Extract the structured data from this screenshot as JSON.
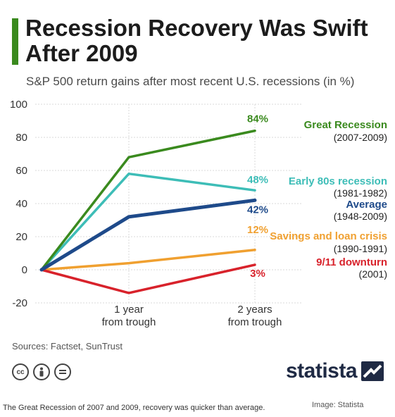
{
  "header": {
    "title": "Recession Recovery Was Swift After 2009",
    "subtitle": "S&P 500 return gains after most recent U.S. recessions (in %)",
    "accent_color": "#3a8a1e"
  },
  "chart_data": {
    "type": "line",
    "title": "Recession Recovery Was Swift After 2009",
    "subtitle": "S&P 500 return gains after most recent U.S. recessions (in %)",
    "xlabel": "",
    "ylabel": "",
    "categories": [
      "",
      "1 year\nfrom trough",
      "2 years\nfrom trough"
    ],
    "y_ticks": [
      100,
      80,
      60,
      40,
      20,
      0,
      -20
    ],
    "ylim": [
      -20,
      100
    ],
    "grid": true,
    "legend": "right",
    "series": [
      {
        "name": "Great Recession",
        "period": "(2007-2009)",
        "values": [
          0,
          68,
          84
        ],
        "end_label": "84%",
        "color": "#3a8a1e"
      },
      {
        "name": "Early 80s recession",
        "period": "(1981-1982)",
        "values": [
          0,
          58,
          48
        ],
        "end_label": "48%",
        "color": "#3dbdb7"
      },
      {
        "name": "Average",
        "period": "(1948-2009)",
        "values": [
          0,
          32,
          42
        ],
        "end_label": "42%",
        "color": "#1e4a8a"
      },
      {
        "name": "Savings and loan crisis",
        "period": "(1990-1991)",
        "values": [
          0,
          4,
          12
        ],
        "end_label": "12%",
        "color": "#f0a030"
      },
      {
        "name": "9/11 downturn",
        "period": "(2001)",
        "values": [
          0,
          -14,
          3
        ],
        "end_label": "3%",
        "color": "#d8222b"
      }
    ]
  },
  "footer": {
    "sources": "Sources: Factset, SunTrust",
    "cc_icons": [
      "cc-icon",
      "by-icon",
      "equals-icon"
    ],
    "brand": "statista",
    "caption": "The Great Recession of 2007 and 2009, recovery was quicker than average.",
    "credit": "Image: Statista"
  }
}
